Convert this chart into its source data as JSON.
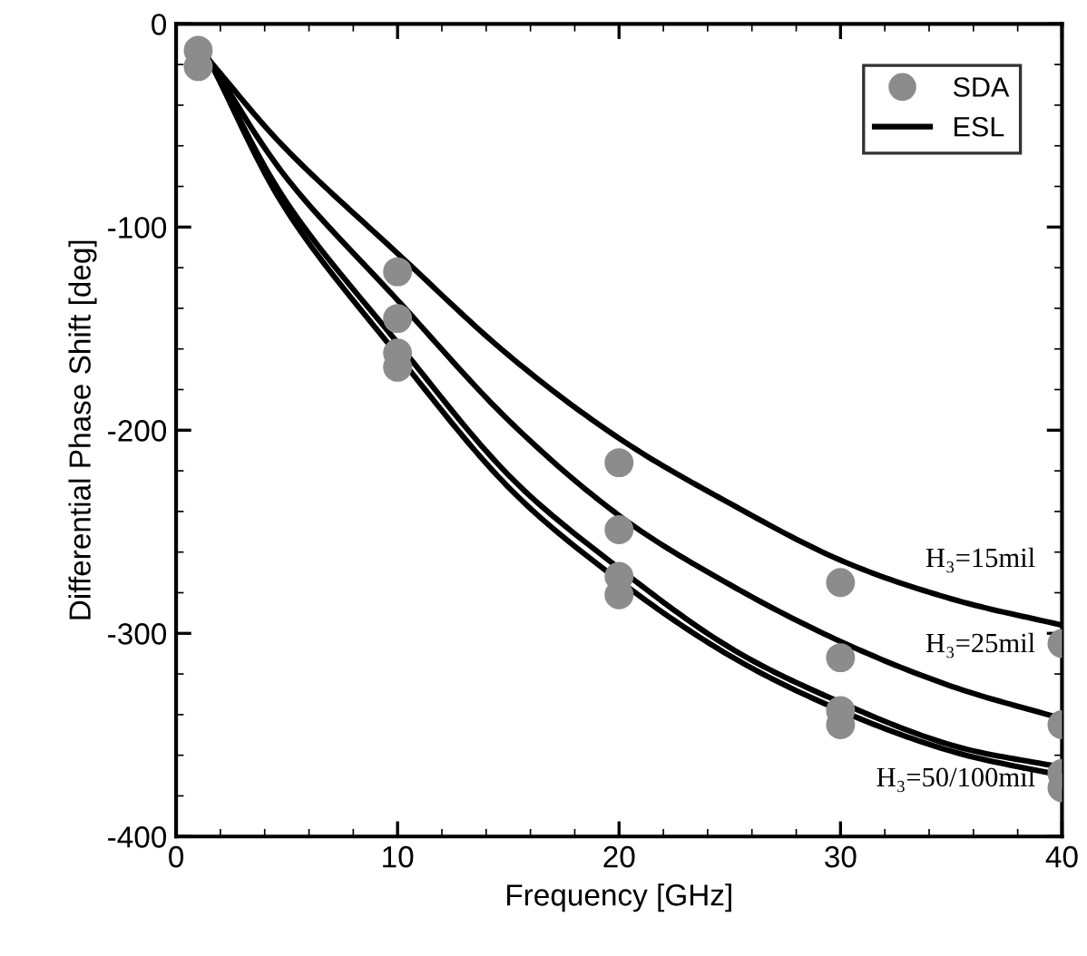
{
  "chart_data": {
    "type": "line",
    "xlabel": "Frequency [GHz]",
    "ylabel": "Differential Phase Shift [deg]",
    "xlim": [
      0,
      40
    ],
    "xticks": [
      0,
      10,
      20,
      30,
      40
    ],
    "ylim": [
      -400,
      0
    ],
    "yticks": [
      -400,
      -300,
      -200,
      -100,
      0
    ],
    "grid": false,
    "legend": "top right",
    "series": [
      {
        "name": "SDA",
        "type": "scatter",
        "marker": "circle",
        "color": "#8c8c8c",
        "x": [
          1,
          1,
          10,
          10,
          10,
          10,
          20,
          20,
          20,
          20,
          30,
          30,
          30,
          30,
          40,
          40,
          40,
          40
        ],
        "values": [
          -13,
          -21,
          -122,
          -145,
          -162,
          -169,
          -216,
          -249,
          -272,
          -281,
          -275,
          -312,
          -338,
          -345,
          -305,
          -345,
          -369,
          -376
        ]
      },
      {
        "name": "ESL",
        "color": "#000000",
        "x": [
          1.5,
          5,
          10,
          15,
          20,
          25,
          30,
          35,
          40
        ],
        "values": [
          -18,
          -62,
          -113,
          -163,
          -204,
          -236,
          -264,
          -283,
          -296
        ]
      },
      {
        "color": "#000000",
        "x": [
          1.5,
          5,
          10,
          15,
          20,
          25,
          30,
          35,
          40
        ],
        "values": [
          -18,
          -76,
          -136,
          -195,
          -242,
          -276,
          -304,
          -326,
          -342
        ]
      },
      {
        "color": "#000000",
        "x": [
          1.5,
          5,
          10,
          15,
          20,
          25,
          30,
          35,
          40
        ],
        "values": [
          -18,
          -88,
          -157,
          -222,
          -268,
          -307,
          -334,
          -355,
          -366
        ]
      },
      {
        "color": "#000000",
        "x": [
          1.5,
          5,
          10,
          15,
          20,
          25,
          30,
          35,
          40
        ],
        "values": [
          -18,
          -92,
          -163,
          -228,
          -274,
          -311,
          -338,
          -358,
          -370
        ]
      }
    ],
    "annotations": [
      "H₃=15mil",
      "H₃=25mil",
      "H₃=50/100mil"
    ]
  }
}
